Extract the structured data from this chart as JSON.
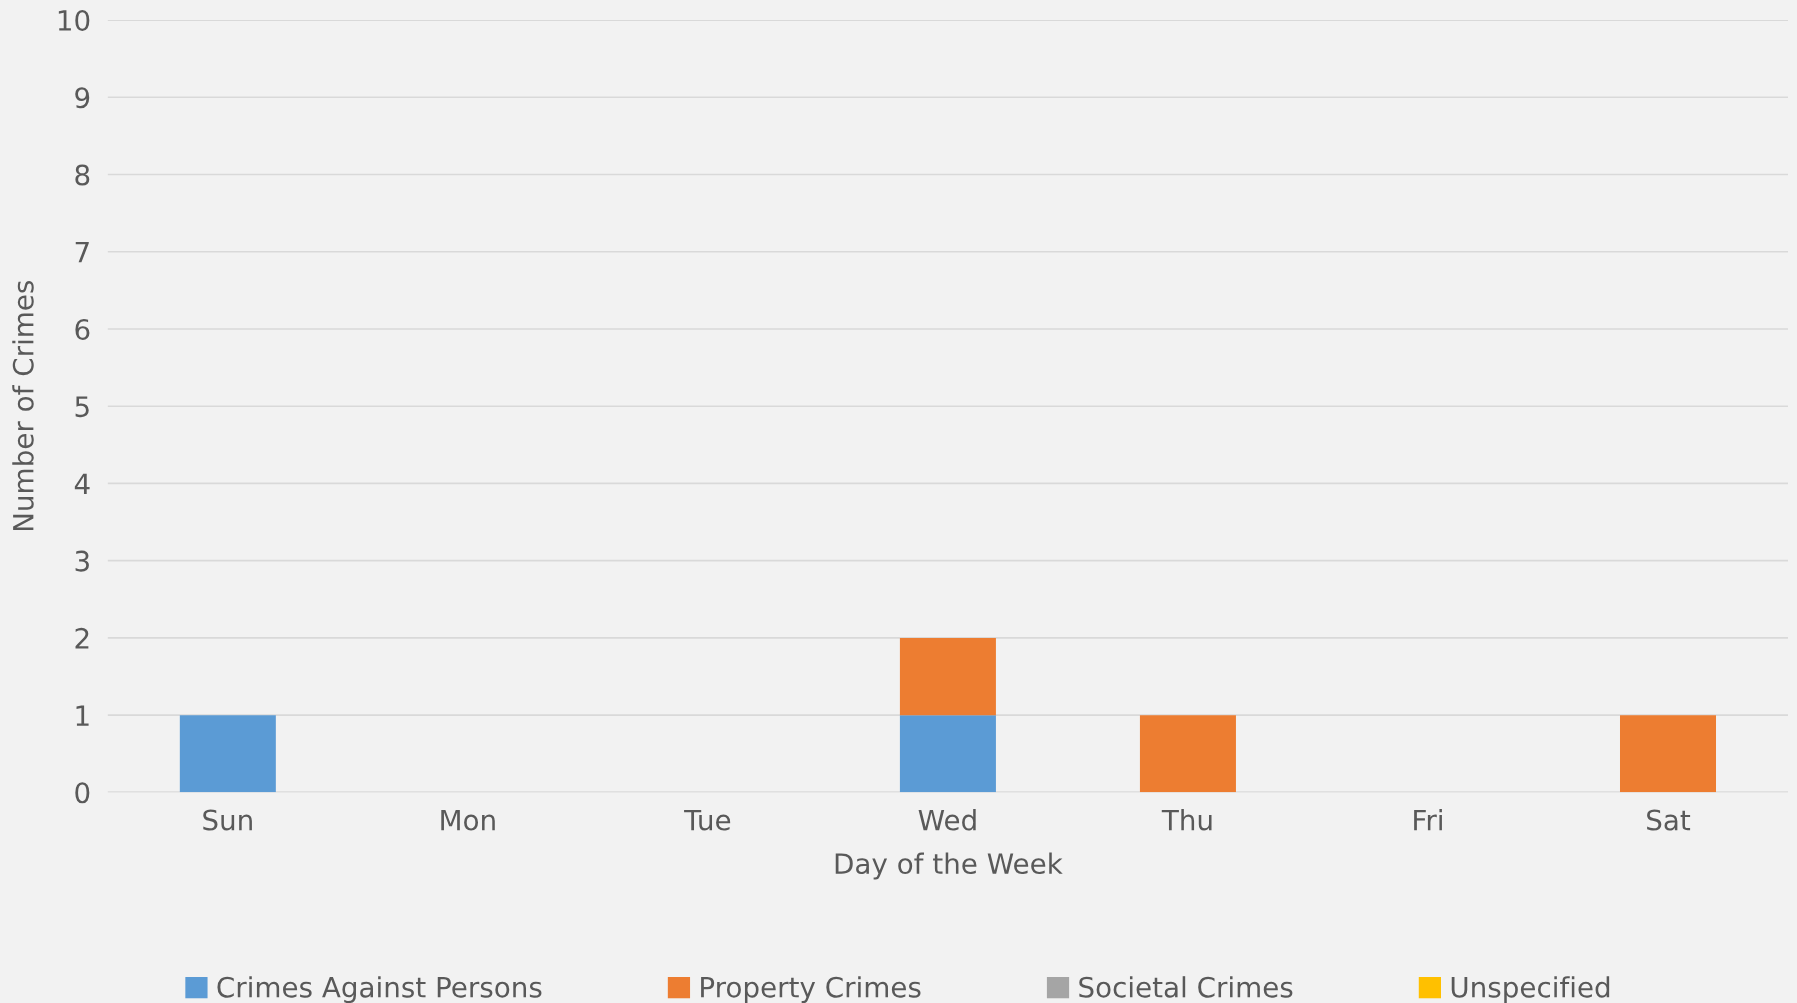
{
  "chart_data": {
    "type": "bar",
    "stacked": true,
    "xlabel": "Day of the Week",
    "ylabel": "Number of Crimes",
    "categories": [
      "Sun",
      "Mon",
      "Tue",
      "Wed",
      "Thu",
      "Fri",
      "Sat"
    ],
    "series": [
      {
        "name": "Crimes Against Persons",
        "color": "#5b9bd5",
        "values": [
          1,
          0,
          0,
          1,
          0,
          0,
          0
        ]
      },
      {
        "name": "Property Crimes",
        "color": "#ed7d31",
        "values": [
          0,
          0,
          0,
          1,
          1,
          0,
          1
        ]
      },
      {
        "name": "Societal Crimes",
        "color": "#a5a5a5",
        "values": [
          0,
          0,
          0,
          0,
          0,
          0,
          0
        ]
      },
      {
        "name": "Unspecified",
        "color": "#ffc000",
        "values": [
          0,
          0,
          0,
          0,
          0,
          0,
          0
        ]
      }
    ],
    "ylim": [
      0,
      10
    ],
    "yticks": [
      0,
      1,
      2,
      3,
      4,
      5,
      6,
      7,
      8,
      9,
      10
    ],
    "grid": "y",
    "legend": "bottom"
  }
}
